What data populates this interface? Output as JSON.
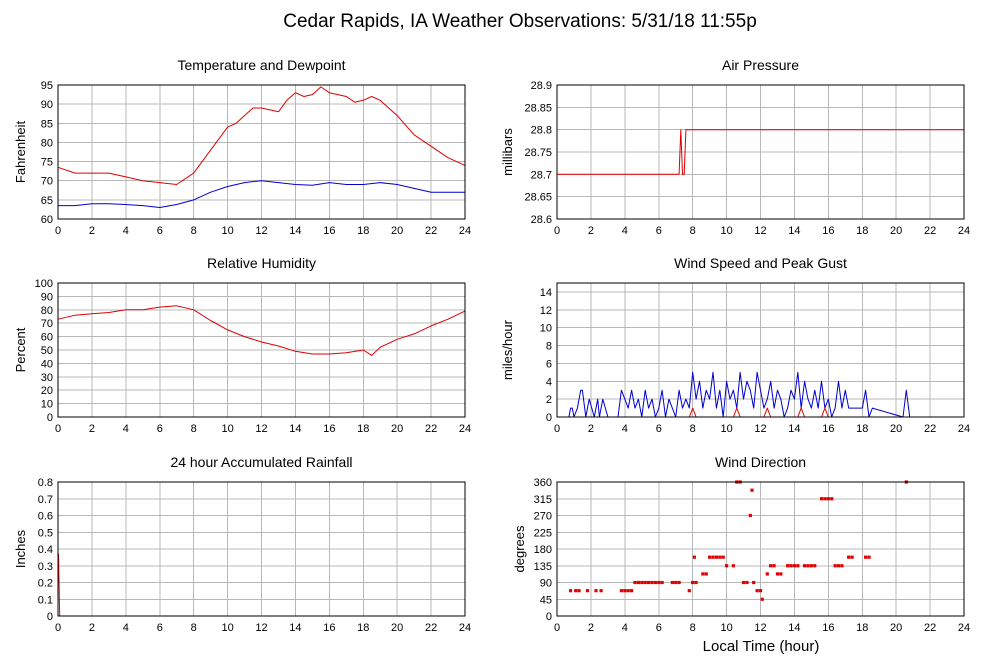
{
  "page": {
    "title": "Cedar Rapids, IA Weather Observations: 5/31/18 11:55p",
    "xlabel": "Local Time (hour)"
  },
  "colors": {
    "primary": "#e00000",
    "secondary": "#0000d0",
    "grid": "#b8b8b8"
  },
  "chart_data": [
    {
      "id": "temp",
      "type": "line",
      "title": "Temperature and Dewpoint",
      "ylabel": "Fahrenheit",
      "xlim": [
        0,
        24
      ],
      "ylim": [
        60,
        95
      ],
      "xticks": [
        0,
        2,
        4,
        6,
        8,
        10,
        12,
        14,
        16,
        18,
        20,
        22,
        24
      ],
      "yticks": [
        60,
        65,
        70,
        75,
        80,
        85,
        90,
        95
      ],
      "grid": true,
      "series": [
        {
          "color": "#e00000",
          "x": [
            0,
            1,
            2,
            3,
            4,
            5,
            6,
            7,
            8,
            9,
            10,
            10.5,
            11,
            11.5,
            12,
            13,
            13.5,
            14,
            14.5,
            15,
            15.5,
            16,
            17,
            17.5,
            18,
            18.5,
            19,
            20,
            21,
            22,
            23,
            24
          ],
          "y": [
            73.5,
            72,
            72,
            72,
            71,
            70,
            69.5,
            69,
            72,
            78,
            84,
            85,
            87,
            89,
            89,
            88,
            91,
            93,
            92,
            92.5,
            94.5,
            93,
            92,
            90.5,
            91,
            92,
            91,
            87,
            82,
            79,
            76,
            74
          ]
        },
        {
          "color": "#0000d0",
          "x": [
            0,
            1,
            2,
            3,
            4,
            5,
            6,
            7,
            8,
            9,
            10,
            11,
            12,
            13,
            14,
            15,
            16,
            17,
            18,
            19,
            20,
            21,
            22,
            23,
            24
          ],
          "y": [
            63.5,
            63.5,
            64,
            64,
            63.8,
            63.5,
            63,
            63.8,
            65,
            67,
            68.5,
            69.5,
            70,
            69.5,
            69,
            68.8,
            69.5,
            69,
            69,
            69.5,
            69,
            68,
            67,
            67,
            67
          ]
        }
      ]
    },
    {
      "id": "pressure",
      "type": "line",
      "title": "Air Pressure",
      "ylabel": "millibars",
      "xlim": [
        0,
        24
      ],
      "ylim": [
        28.6,
        28.9
      ],
      "xticks": [
        0,
        2,
        4,
        6,
        8,
        10,
        12,
        14,
        16,
        18,
        20,
        22,
        24
      ],
      "yticks": [
        28.6,
        28.65,
        28.7,
        28.75,
        28.8,
        28.85,
        28.9
      ],
      "grid": true,
      "series": [
        {
          "color": "#e00000",
          "x": [
            0,
            7.2,
            7.3,
            7.4,
            7.5,
            7.6,
            7.7,
            24
          ],
          "y": [
            28.7,
            28.7,
            28.8,
            28.7,
            28.7,
            28.8,
            28.8,
            28.8
          ]
        }
      ]
    },
    {
      "id": "humidity",
      "type": "line",
      "title": "Relative Humidity",
      "ylabel": "Percent",
      "xlim": [
        0,
        24
      ],
      "ylim": [
        0,
        100
      ],
      "xticks": [
        0,
        2,
        4,
        6,
        8,
        10,
        12,
        14,
        16,
        18,
        20,
        22,
        24
      ],
      "yticks": [
        0,
        10,
        20,
        30,
        40,
        50,
        60,
        70,
        80,
        90,
        100
      ],
      "grid": true,
      "series": [
        {
          "color": "#e00000",
          "x": [
            0,
            1,
            2,
            3,
            4,
            5,
            6,
            7,
            8,
            9,
            10,
            11,
            12,
            13,
            14,
            15,
            16,
            17,
            18,
            18.5,
            19,
            20,
            21,
            22,
            23,
            24
          ],
          "y": [
            73,
            76,
            77,
            78,
            80,
            80,
            82,
            83,
            80,
            72,
            65,
            60,
            56,
            53,
            49,
            47,
            47,
            48,
            50,
            46,
            52,
            58,
            62,
            68,
            73,
            79
          ]
        }
      ]
    },
    {
      "id": "wind",
      "type": "line",
      "title": "Wind Speed and Peak Gust",
      "ylabel": "miles/hour",
      "xlim": [
        0,
        24
      ],
      "ylim": [
        0,
        15
      ],
      "xticks": [
        0,
        2,
        4,
        6,
        8,
        10,
        12,
        14,
        16,
        18,
        20,
        22,
        24
      ],
      "yticks": [
        0,
        2,
        4,
        6,
        8,
        10,
        12,
        14
      ],
      "grid": true,
      "series": [
        {
          "color": "#0000d0",
          "x": [
            0,
            0.7,
            0.8,
            0.9,
            1,
            1.2,
            1.4,
            1.5,
            1.7,
            1.9,
            2.2,
            2.4,
            2.5,
            2.7,
            3,
            3.6,
            3.8,
            4,
            4.2,
            4.4,
            4.6,
            4.8,
            5,
            5.2,
            5.4,
            5.6,
            5.8,
            6,
            6.2,
            6.4,
            6.6,
            6.8,
            7,
            7.2,
            7.4,
            7.6,
            7.8,
            8,
            8.2,
            8.4,
            8.6,
            8.8,
            9,
            9.2,
            9.4,
            9.6,
            9.8,
            10,
            10.2,
            10.4,
            10.6,
            10.8,
            11,
            11.2,
            11.4,
            11.6,
            11.8,
            12,
            12.2,
            12.4,
            12.6,
            12.8,
            13,
            13.2,
            13.4,
            13.6,
            13.8,
            14,
            14.2,
            14.4,
            14.6,
            14.8,
            15,
            15.2,
            15.4,
            15.6,
            15.8,
            16,
            16.2,
            16.4,
            16.6,
            16.8,
            17,
            17.2,
            17.4,
            18,
            18.2,
            18.4,
            18.6,
            20.4,
            20.6,
            20.8,
            24
          ],
          "y": [
            0,
            0,
            1,
            1,
            0,
            1,
            3,
            3,
            0,
            2,
            0,
            2,
            0,
            2,
            0,
            0,
            3,
            2,
            1,
            3,
            1,
            2,
            0,
            3,
            1,
            2,
            0,
            1,
            3,
            0,
            2,
            1,
            0,
            3,
            1,
            2,
            1,
            5,
            2,
            4,
            1,
            3,
            2,
            5,
            1,
            3,
            0,
            4,
            2,
            3,
            1,
            5,
            2,
            4,
            3,
            1,
            5,
            3,
            1,
            2,
            4,
            1,
            3,
            2,
            0,
            1,
            3,
            2,
            5,
            1,
            4,
            2,
            1,
            3,
            1,
            4,
            1,
            2,
            0,
            1,
            4,
            1,
            3,
            1,
            1,
            1,
            3,
            0,
            1,
            0,
            3,
            0,
            0
          ]
        },
        {
          "color": "#e00000",
          "x": [
            0,
            7.8,
            8,
            8.2,
            10.4,
            10.6,
            10.8,
            12.2,
            12.4,
            12.6,
            14.2,
            14.4,
            14.6,
            15.6,
            15.8,
            16,
            24
          ],
          "y": [
            0,
            0,
            1,
            0,
            0,
            1,
            0,
            0,
            1,
            0,
            0,
            1,
            0,
            0,
            1,
            0,
            0
          ]
        }
      ]
    },
    {
      "id": "rain",
      "type": "line",
      "title": "24 hour Accumulated Rainfall",
      "ylabel": "Inches",
      "xlim": [
        0,
        24
      ],
      "ylim": [
        0,
        0.8
      ],
      "xticks": [
        0,
        2,
        4,
        6,
        8,
        10,
        12,
        14,
        16,
        18,
        20,
        22,
        24
      ],
      "yticks": [
        0,
        0.1,
        0.2,
        0.3,
        0.4,
        0.5,
        0.6,
        0.7,
        0.8
      ],
      "grid": true,
      "series": [
        {
          "color": "#e00000",
          "x": [
            0,
            0.03,
            0.1,
            24
          ],
          "y": [
            0.37,
            0.37,
            0,
            0
          ]
        }
      ]
    },
    {
      "id": "direction",
      "type": "scatter",
      "title": "Wind Direction",
      "ylabel": "degrees",
      "xlim": [
        0,
        24
      ],
      "ylim": [
        0,
        360
      ],
      "xticks": [
        0,
        2,
        4,
        6,
        8,
        10,
        12,
        14,
        16,
        18,
        20,
        22,
        24
      ],
      "yticks": [
        0,
        45,
        90,
        135,
        180,
        225,
        270,
        315,
        360
      ],
      "grid": true,
      "series": [
        {
          "color": "#e00000",
          "x": [
            0.8,
            1.1,
            1.3,
            1.8,
            2.3,
            2.6,
            3.8,
            4,
            4.2,
            4.4,
            4.6,
            4.8,
            5,
            5.2,
            5.4,
            5.6,
            5.8,
            6,
            6.2,
            6.8,
            7,
            7.2,
            7.8,
            8,
            8.1,
            8.2,
            8.6,
            8.8,
            9,
            9.2,
            9.4,
            9.6,
            9.8,
            10,
            10.4,
            10.6,
            10.8,
            11,
            11.2,
            11.4,
            11.5,
            11.6,
            11.8,
            12,
            12.1,
            12.4,
            12.6,
            12.8,
            13,
            13.2,
            13.6,
            13.8,
            14,
            14.2,
            14.6,
            14.8,
            15,
            15.2,
            15.6,
            15.8,
            16,
            16.2,
            16.4,
            16.6,
            16.8,
            17.2,
            17.4,
            18.2,
            18.4,
            20.6
          ],
          "y": [
            68,
            68,
            68,
            68,
            68,
            68,
            68,
            68,
            68,
            68,
            90,
            90,
            90,
            90,
            90,
            90,
            90,
            90,
            90,
            90,
            90,
            90,
            68,
            90,
            158,
            90,
            113,
            113,
            158,
            158,
            158,
            158,
            158,
            135,
            135,
            360,
            360,
            90,
            90,
            270,
            338,
            90,
            68,
            68,
            45,
            113,
            135,
            135,
            113,
            113,
            135,
            135,
            135,
            135,
            135,
            135,
            135,
            135,
            315,
            315,
            315,
            315,
            135,
            135,
            135,
            158,
            158,
            158,
            158,
            360
          ]
        }
      ]
    }
  ]
}
